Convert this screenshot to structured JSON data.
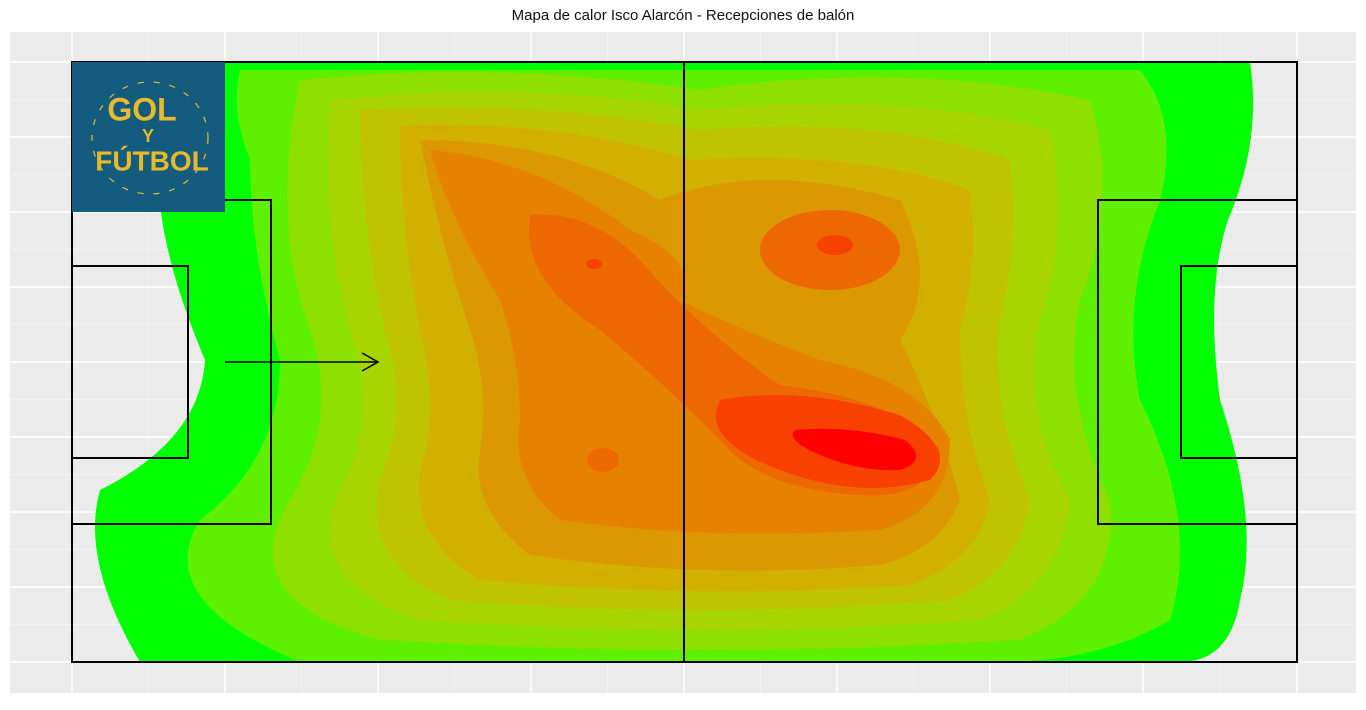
{
  "chart_data": {
    "type": "density",
    "title": "Mapa de calor Isco Alarcón - Recepciones de balón"
  },
  "logo": {
    "line1": "GOL",
    "line2": "Y",
    "line3": "FÚTBOL"
  }
}
